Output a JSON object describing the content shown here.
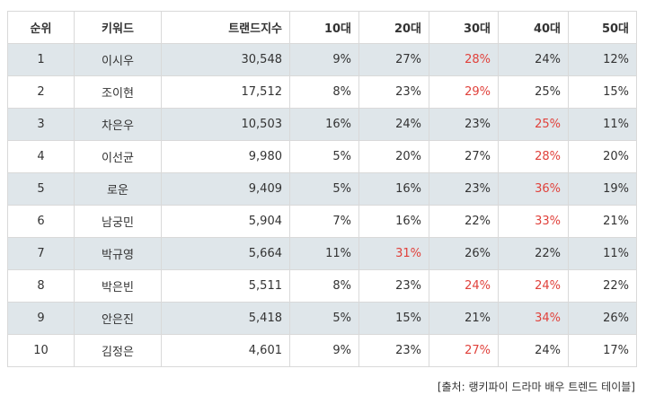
{
  "headers": [
    "순위",
    "키워드",
    "트랜드지수",
    "10대",
    "20대",
    "30대",
    "40대",
    "50대"
  ],
  "rows": [
    {
      "rank": "1",
      "keyword": "이시우",
      "index": "30,548",
      "a10": "9%",
      "a20": "27%",
      "a30": "28%",
      "a40": "24%",
      "a50": "12%",
      "hl": "a30"
    },
    {
      "rank": "2",
      "keyword": "조이현",
      "index": "17,512",
      "a10": "8%",
      "a20": "23%",
      "a30": "29%",
      "a40": "25%",
      "a50": "15%",
      "hl": "a30"
    },
    {
      "rank": "3",
      "keyword": "차은우",
      "index": "10,503",
      "a10": "16%",
      "a20": "24%",
      "a30": "23%",
      "a40": "25%",
      "a50": "11%",
      "hl": "a40"
    },
    {
      "rank": "4",
      "keyword": "이선균",
      "index": "9,980",
      "a10": "5%",
      "a20": "20%",
      "a30": "27%",
      "a40": "28%",
      "a50": "20%",
      "hl": "a40"
    },
    {
      "rank": "5",
      "keyword": "로운",
      "index": "9,409",
      "a10": "5%",
      "a20": "16%",
      "a30": "23%",
      "a40": "36%",
      "a50": "19%",
      "hl": "a40"
    },
    {
      "rank": "6",
      "keyword": "남궁민",
      "index": "5,904",
      "a10": "7%",
      "a20": "16%",
      "a30": "22%",
      "a40": "33%",
      "a50": "21%",
      "hl": "a40"
    },
    {
      "rank": "7",
      "keyword": "박규영",
      "index": "5,664",
      "a10": "11%",
      "a20": "31%",
      "a30": "26%",
      "a40": "22%",
      "a50": "11%",
      "hl": "a20"
    },
    {
      "rank": "8",
      "keyword": "박은빈",
      "index": "5,511",
      "a10": "8%",
      "a20": "23%",
      "a30": "24%",
      "a40": "24%",
      "a50": "22%",
      "hl": "a30,a40"
    },
    {
      "rank": "9",
      "keyword": "안은진",
      "index": "5,418",
      "a10": "5%",
      "a20": "15%",
      "a30": "21%",
      "a40": "34%",
      "a50": "26%",
      "hl": "a40"
    },
    {
      "rank": "10",
      "keyword": "김정은",
      "index": "4,601",
      "a10": "9%",
      "a20": "23%",
      "a30": "27%",
      "a40": "24%",
      "a50": "17%",
      "hl": "a30"
    }
  ],
  "source": "[출처: 랭키파이 드라마 배우 트렌드 테이블]",
  "colors": {
    "highlight": "#e0413b",
    "alt_row": "#dfe6ea",
    "border": "#d9d9d9"
  }
}
